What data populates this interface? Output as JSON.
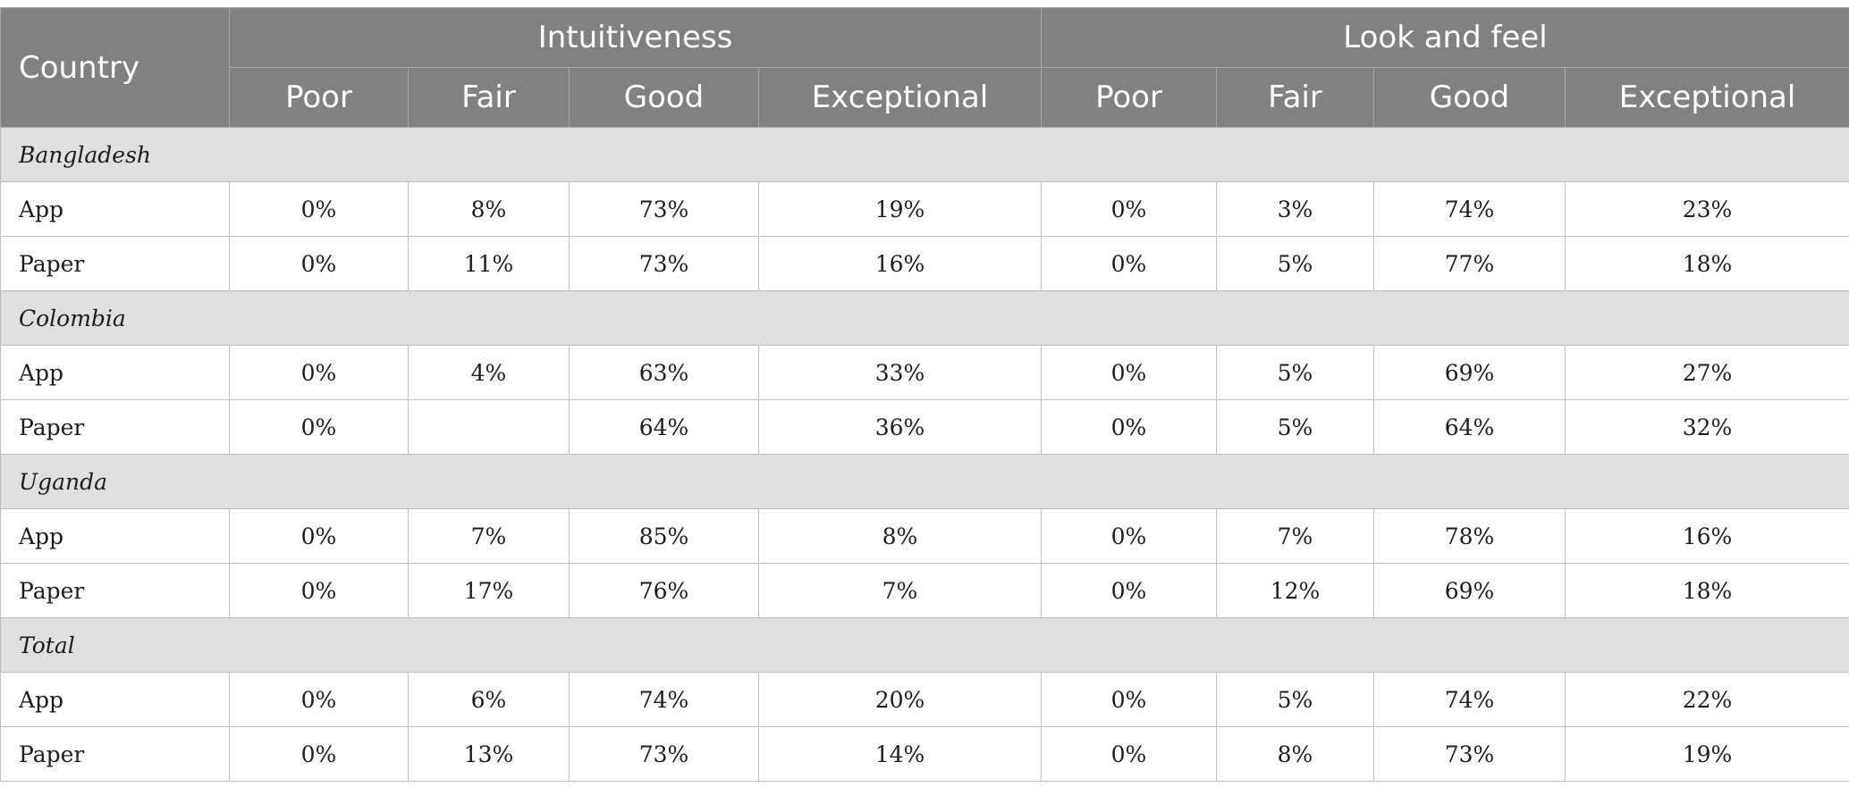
{
  "table": {
    "country_header": "Country",
    "groups": [
      "Intuitiveness",
      "Look and feel"
    ],
    "levels": [
      "Poor",
      "Fair",
      "Good",
      "Exceptional"
    ],
    "sections": [
      {
        "country": "Bangladesh",
        "rows": [
          {
            "label": "App",
            "values": [
              "0%",
              "8%",
              "73%",
              "19%",
              "0%",
              "3%",
              "74%",
              "23%"
            ]
          },
          {
            "label": "Paper",
            "values": [
              "0%",
              "11%",
              "73%",
              "16%",
              "0%",
              "5%",
              "77%",
              "18%"
            ]
          }
        ]
      },
      {
        "country": "Colombia",
        "rows": [
          {
            "label": "App",
            "values": [
              "0%",
              "4%",
              "63%",
              "33%",
              "0%",
              "5%",
              "69%",
              "27%"
            ]
          },
          {
            "label": "Paper",
            "values": [
              "0%",
              "",
              "64%",
              "36%",
              "0%",
              "5%",
              "64%",
              "32%"
            ]
          }
        ]
      },
      {
        "country": "Uganda",
        "rows": [
          {
            "label": "App",
            "values": [
              "0%",
              "7%",
              "85%",
              "8%",
              "0%",
              "7%",
              "78%",
              "16%"
            ]
          },
          {
            "label": "Paper",
            "values": [
              "0%",
              "17%",
              "76%",
              "7%",
              "0%",
              "12%",
              "69%",
              "18%"
            ]
          }
        ]
      },
      {
        "country": "Total",
        "rows": [
          {
            "label": "App",
            "values": [
              "0%",
              "6%",
              "74%",
              "20%",
              "0%",
              "5%",
              "74%",
              "22%"
            ]
          },
          {
            "label": "Paper",
            "values": [
              "0%",
              "13%",
              "73%",
              "14%",
              "0%",
              "8%",
              "73%",
              "19%"
            ]
          }
        ]
      }
    ]
  }
}
